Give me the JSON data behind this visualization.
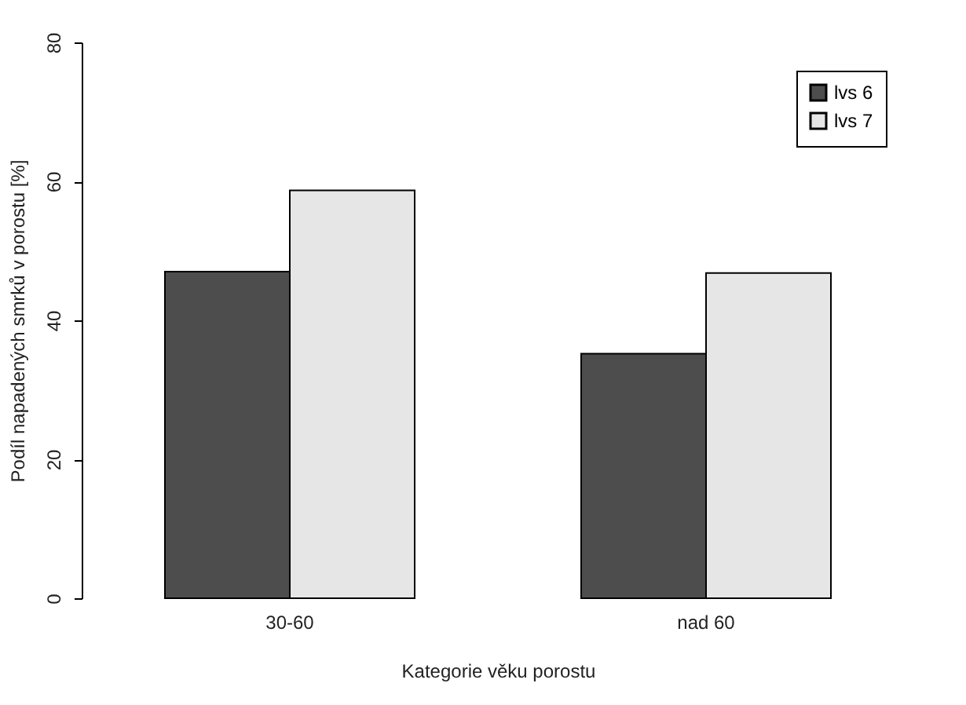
{
  "chart_data": {
    "type": "bar",
    "xlabel": "Kategorie věku porostu",
    "ylabel": "Podíl napadených smrků v porostu [%]",
    "categories": [
      "30-60",
      "nad 60"
    ],
    "series": [
      {
        "name": "lvs 6",
        "color": "#4d4d4d",
        "values": [
          47.0,
          35.2
        ]
      },
      {
        "name": "lvs 7",
        "color": "#e6e6e6",
        "values": [
          58.7,
          46.8
        ]
      }
    ],
    "ylim": [
      0,
      80
    ],
    "yticks": [
      0,
      20,
      40,
      60,
      80
    ],
    "grid": false,
    "legend": "top right"
  }
}
